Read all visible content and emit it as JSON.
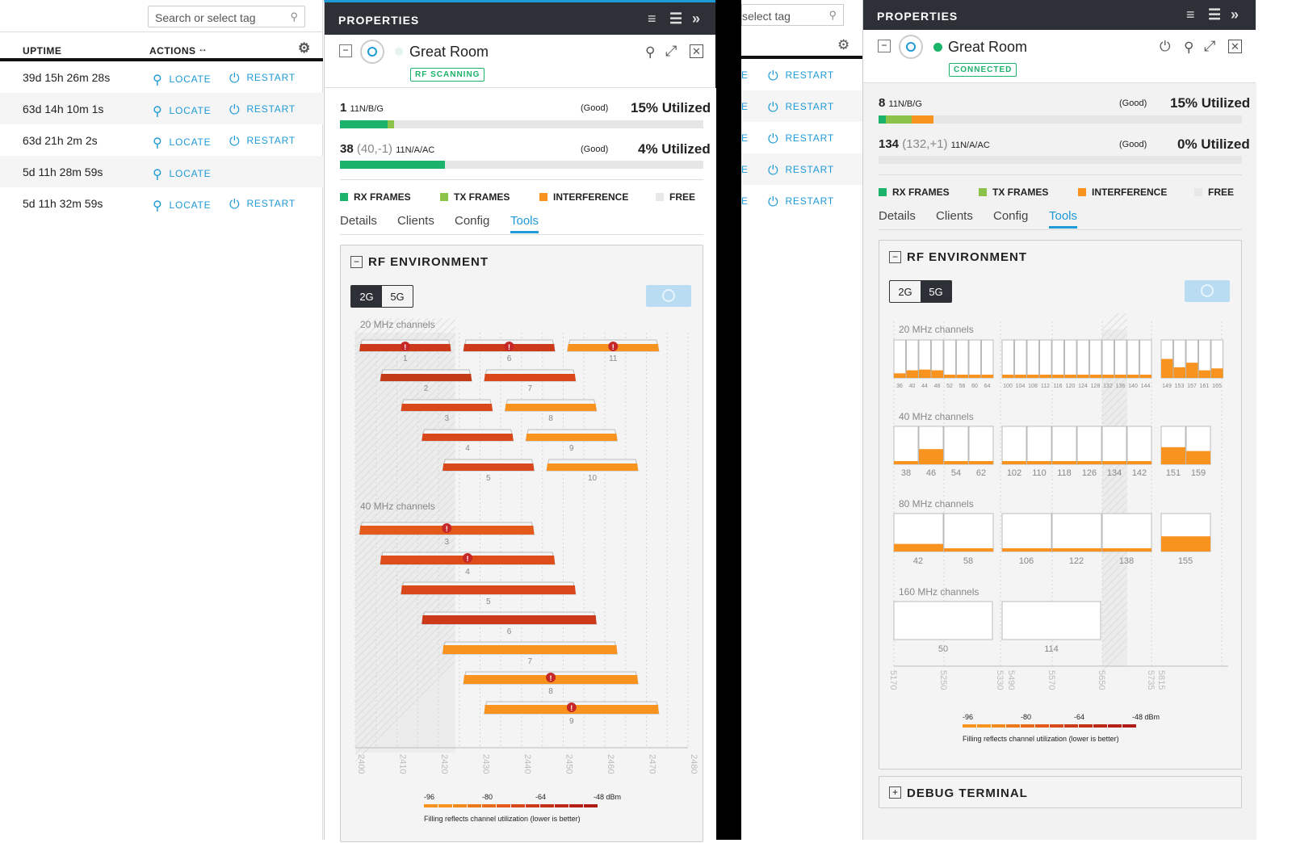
{
  "left_panel": {
    "search_placeholder": "Search or select tag",
    "col_uptime": "UPTIME",
    "col_actions": "ACTIONS",
    "locate": "LOCATE",
    "restart": "RESTART",
    "rows": [
      {
        "uptime": "39d 15h 26m 28s",
        "restart": true
      },
      {
        "uptime": "63d 14h 10m 1s",
        "restart": true
      },
      {
        "uptime": "63d 21h 2m 2s",
        "restart": true
      },
      {
        "uptime": "5d 11h 28m 59s",
        "restart": false
      },
      {
        "uptime": "5d 11h 32m 59s",
        "restart": true
      }
    ]
  },
  "mid_search_placeholder": "select tag",
  "panel1": {
    "header": "PROPERTIES",
    "device_name": "Great Room",
    "status": "RF SCANNING",
    "radio1": {
      "channel": "1",
      "mode": "11N/B/G",
      "quality": "(Good)",
      "util": "15% Utilized",
      "rx": 13,
      "tx": 2
    },
    "radio2": {
      "channel": "38",
      "extra": "(40,-1)",
      "mode": "11N/A/AC",
      "quality": "(Good)",
      "util": "4% Utilized",
      "rx": 29,
      "tx": 0
    },
    "legend": [
      "RX FRAMES",
      "TX FRAMES",
      "INTERFERENCE",
      "FREE"
    ],
    "tabs": [
      "Details",
      "Clients",
      "Config",
      "Tools"
    ],
    "rf_title": "RF ENVIRONMENT",
    "band_2g": "2G",
    "band_5g": "5G",
    "label20": "20 MHz channels",
    "label40": "40 MHz channels",
    "ch20": [
      "1",
      "6",
      "11",
      "2",
      "7",
      "3",
      "8",
      "4",
      "9",
      "5",
      "10"
    ],
    "ch40": [
      "3",
      "4",
      "5",
      "6",
      "7",
      "8",
      "9"
    ],
    "freq_ticks": [
      "2400",
      "2410",
      "2420",
      "2430",
      "2440",
      "2450",
      "2460",
      "2470",
      "2480"
    ],
    "scale": [
      "-96",
      "-80",
      "-64",
      "-48 dBm"
    ],
    "scale_note": "Filling reflects channel utilization (lower is better)"
  },
  "panel2": {
    "header": "PROPERTIES",
    "device_name": "Great Room",
    "status": "CONNECTED",
    "radio1": {
      "channel": "8",
      "mode": "11N/B/G",
      "quality": "(Good)",
      "util": "15% Utilized",
      "rx": 2,
      "tx": 7,
      "interf": 6
    },
    "radio2": {
      "channel": "134",
      "extra": "(132,+1)",
      "mode": "11N/A/AC",
      "quality": "(Good)",
      "util": "0% Utilized"
    },
    "legend": [
      "RX FRAMES",
      "TX FRAMES",
      "INTERFERENCE",
      "FREE"
    ],
    "tabs": [
      "Details",
      "Clients",
      "Config",
      "Tools"
    ],
    "rf_title": "RF ENVIRONMENT",
    "band_2g": "2G",
    "band_5g": "5G",
    "label20": "20 MHz channels",
    "label40": "40 MHz channels",
    "label80": "80 MHz channels",
    "label160": "160 MHz channels",
    "ch20": [
      "36",
      "40",
      "44",
      "48",
      "52",
      "56",
      "60",
      "64",
      "100",
      "104",
      "108",
      "112",
      "116",
      "120",
      "124",
      "128",
      "132",
      "136",
      "140",
      "144",
      "149",
      "153",
      "157",
      "161",
      "165"
    ],
    "ch40": [
      "38",
      "46",
      "54",
      "62",
      "102",
      "110",
      "118",
      "126",
      "134",
      "142",
      "151",
      "159"
    ],
    "ch80": [
      "42",
      "58",
      "106",
      "122",
      "138",
      "155"
    ],
    "ch160": [
      "50",
      "114"
    ],
    "freq_ticks": [
      "5170",
      "5250",
      "5330",
      "5490",
      "5570",
      "5650",
      "5735",
      "5815"
    ],
    "scale": [
      "-96",
      "-80",
      "-64",
      "-48 dBm"
    ],
    "scale_note": "Filling reflects channel utilization (lower is better)",
    "debug": "DEBUG TERMINAL"
  },
  "colors": {
    "accent": "#1e9ad6",
    "rx": "#1bb36a",
    "tx": "#8bc34a",
    "interference": "#f7931e",
    "dark": "#2d3037",
    "red": "#c62828"
  }
}
